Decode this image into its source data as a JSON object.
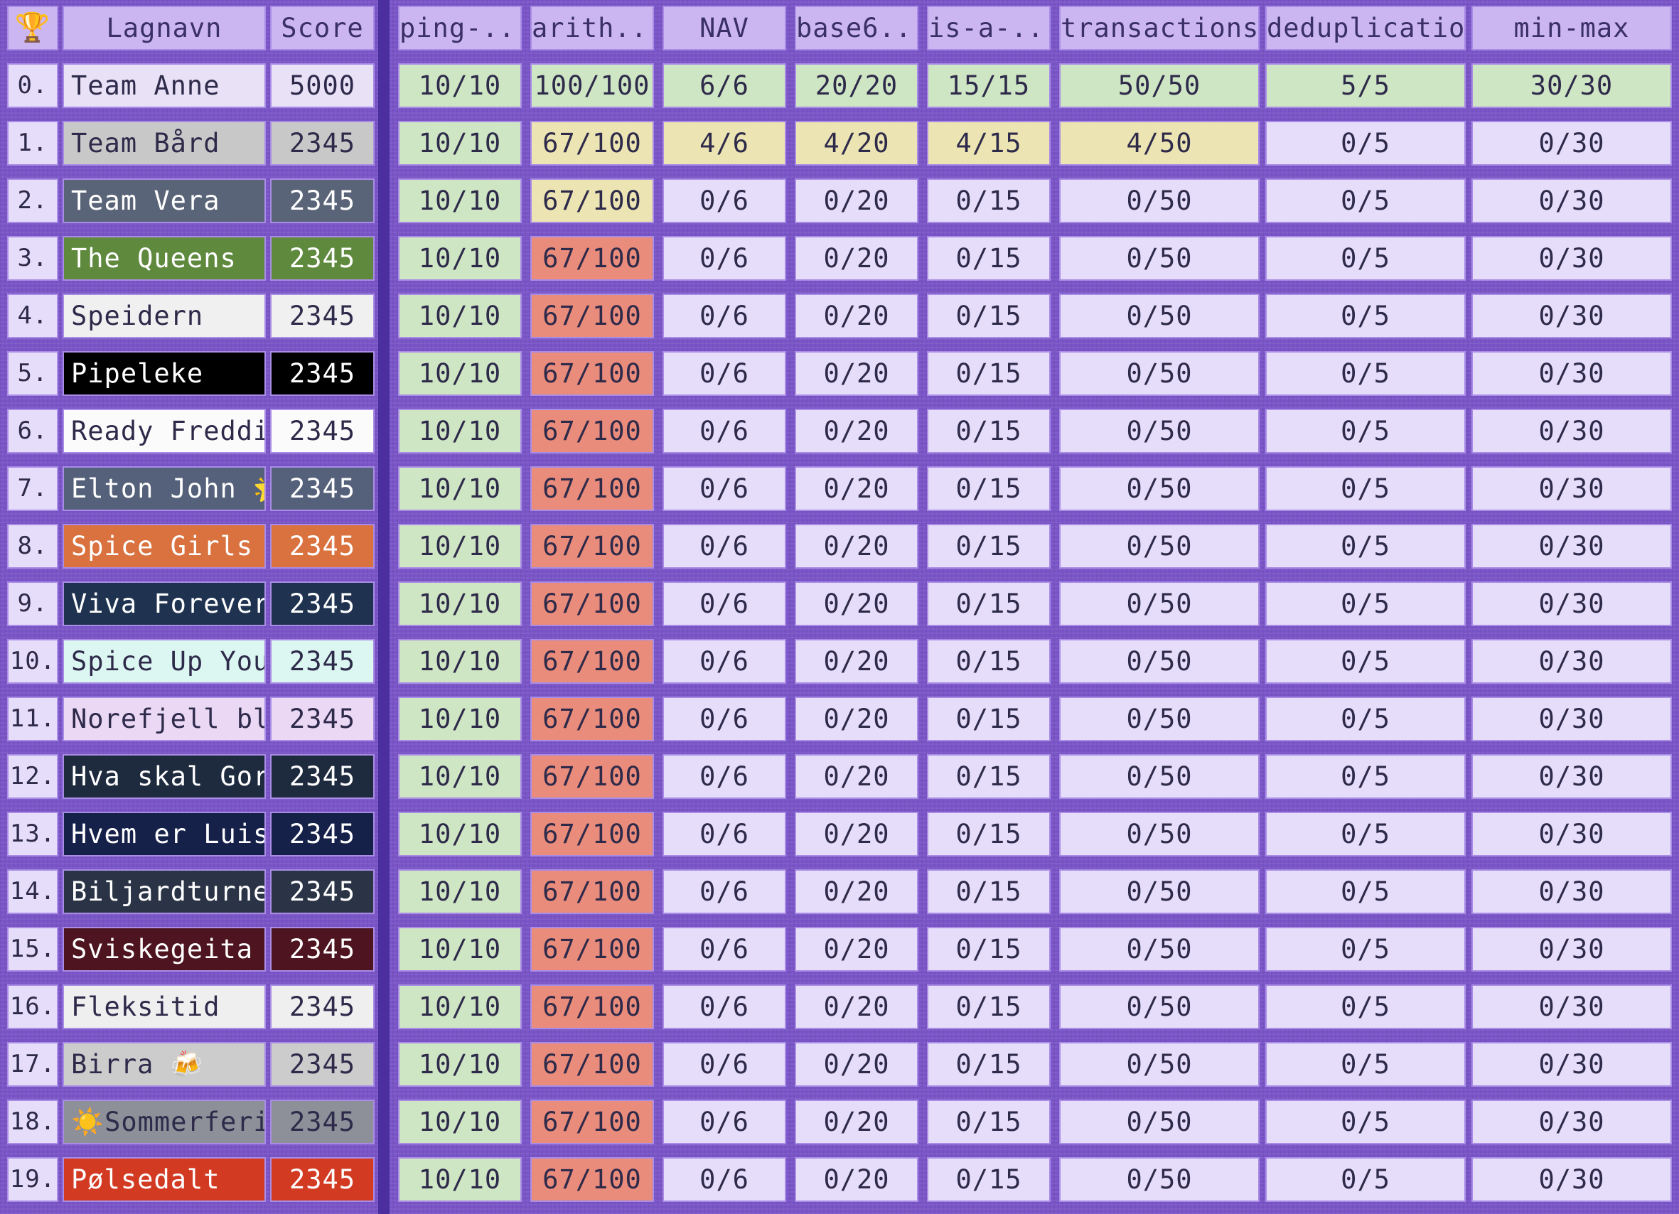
{
  "header": {
    "trophy_icon": "🏆",
    "team": "Lagnavn",
    "score": "Score",
    "tasks": [
      "ping-...",
      "arith...",
      "NAV",
      "base6...",
      "is-a-...",
      "transactions",
      "deduplication",
      "min-max"
    ]
  },
  "status_colors": {
    "complete": "#cfe6c4",
    "partial": "#ece5b3",
    "failing": "#ea8c7b",
    "none": "#e6ddfa"
  },
  "rows": [
    {
      "rank": "0.",
      "name": "Team Anne",
      "score": "5000",
      "bg": "#e9e2f7",
      "fg": "#2e2a4a",
      "cells": [
        {
          "v": "10/10",
          "s": "complete"
        },
        {
          "v": "100/100",
          "s": "complete"
        },
        {
          "v": "6/6",
          "s": "complete"
        },
        {
          "v": "20/20",
          "s": "complete"
        },
        {
          "v": "15/15",
          "s": "complete"
        },
        {
          "v": "50/50",
          "s": "complete"
        },
        {
          "v": "5/5",
          "s": "complete"
        },
        {
          "v": "30/30",
          "s": "complete"
        }
      ]
    },
    {
      "rank": "1.",
      "name": "Team Bård",
      "score": "2345",
      "bg": "#c8c8c8",
      "fg": "#2e2a4a",
      "cells": [
        {
          "v": "10/10",
          "s": "complete"
        },
        {
          "v": "67/100",
          "s": "partial"
        },
        {
          "v": "4/6",
          "s": "partial"
        },
        {
          "v": "4/20",
          "s": "partial"
        },
        {
          "v": "4/15",
          "s": "partial"
        },
        {
          "v": "4/50",
          "s": "partial"
        },
        {
          "v": "0/5",
          "s": "none"
        },
        {
          "v": "0/30",
          "s": "none"
        }
      ]
    },
    {
      "rank": "2.",
      "name": "Team Vera",
      "score": "2345",
      "bg": "#5a6478",
      "fg": "#ffffff",
      "cells": [
        {
          "v": "10/10",
          "s": "complete"
        },
        {
          "v": "67/100",
          "s": "partial"
        },
        {
          "v": "0/6",
          "s": "none"
        },
        {
          "v": "0/20",
          "s": "none"
        },
        {
          "v": "0/15",
          "s": "none"
        },
        {
          "v": "0/50",
          "s": "none"
        },
        {
          "v": "0/5",
          "s": "none"
        },
        {
          "v": "0/30",
          "s": "none"
        }
      ]
    },
    {
      "rank": "3.",
      "name": "The Queens",
      "score": "2345",
      "bg": "#5f8a3e",
      "fg": "#ffffff",
      "cells": [
        {
          "v": "10/10",
          "s": "complete"
        },
        {
          "v": "67/100",
          "s": "failing"
        },
        {
          "v": "0/6",
          "s": "none"
        },
        {
          "v": "0/20",
          "s": "none"
        },
        {
          "v": "0/15",
          "s": "none"
        },
        {
          "v": "0/50",
          "s": "none"
        },
        {
          "v": "0/5",
          "s": "none"
        },
        {
          "v": "0/30",
          "s": "none"
        }
      ]
    },
    {
      "rank": "4.",
      "name": "Speidern",
      "score": "2345",
      "bg": "#f0f0f0",
      "fg": "#2e2a4a",
      "cells": [
        {
          "v": "10/10",
          "s": "complete"
        },
        {
          "v": "67/100",
          "s": "failing"
        },
        {
          "v": "0/6",
          "s": "none"
        },
        {
          "v": "0/20",
          "s": "none"
        },
        {
          "v": "0/15",
          "s": "none"
        },
        {
          "v": "0/50",
          "s": "none"
        },
        {
          "v": "0/5",
          "s": "none"
        },
        {
          "v": "0/30",
          "s": "none"
        }
      ]
    },
    {
      "rank": "5.",
      "name": "Pipeleke",
      "score": "2345",
      "bg": "#000000",
      "fg": "#ffffff",
      "cells": [
        {
          "v": "10/10",
          "s": "complete"
        },
        {
          "v": "67/100",
          "s": "failing"
        },
        {
          "v": "0/6",
          "s": "none"
        },
        {
          "v": "0/20",
          "s": "none"
        },
        {
          "v": "0/15",
          "s": "none"
        },
        {
          "v": "0/50",
          "s": "none"
        },
        {
          "v": "0/5",
          "s": "none"
        },
        {
          "v": "0/30",
          "s": "none"
        }
      ]
    },
    {
      "rank": "6.",
      "name": "Ready Freddie",
      "score": "2345",
      "bg": "#fbfbfb",
      "fg": "#2e2a4a",
      "cells": [
        {
          "v": "10/10",
          "s": "complete"
        },
        {
          "v": "67/100",
          "s": "failing"
        },
        {
          "v": "0/6",
          "s": "none"
        },
        {
          "v": "0/20",
          "s": "none"
        },
        {
          "v": "0/15",
          "s": "none"
        },
        {
          "v": "0/50",
          "s": "none"
        },
        {
          "v": "0/5",
          "s": "none"
        },
        {
          "v": "0/30",
          "s": "none"
        }
      ]
    },
    {
      "rank": "7.",
      "name": "Elton John 🌟",
      "score": "2345",
      "bg": "#55617a",
      "fg": "#ffffff",
      "cells": [
        {
          "v": "10/10",
          "s": "complete"
        },
        {
          "v": "67/100",
          "s": "failing"
        },
        {
          "v": "0/6",
          "s": "none"
        },
        {
          "v": "0/20",
          "s": "none"
        },
        {
          "v": "0/15",
          "s": "none"
        },
        {
          "v": "0/50",
          "s": "none"
        },
        {
          "v": "0/5",
          "s": "none"
        },
        {
          "v": "0/30",
          "s": "none"
        }
      ]
    },
    {
      "rank": "8.",
      "name": "Spice Girls ✌️",
      "score": "2345",
      "bg": "#d9723f",
      "fg": "#ffffff",
      "cells": [
        {
          "v": "10/10",
          "s": "complete"
        },
        {
          "v": "67/100",
          "s": "failing"
        },
        {
          "v": "0/6",
          "s": "none"
        },
        {
          "v": "0/20",
          "s": "none"
        },
        {
          "v": "0/15",
          "s": "none"
        },
        {
          "v": "0/50",
          "s": "none"
        },
        {
          "v": "0/5",
          "s": "none"
        },
        {
          "v": "0/30",
          "s": "none"
        }
      ]
    },
    {
      "rank": "9.",
      "name": "Viva Forever",
      "score": "2345",
      "bg": "#1f3350",
      "fg": "#ffffff",
      "cells": [
        {
          "v": "10/10",
          "s": "complete"
        },
        {
          "v": "67/100",
          "s": "failing"
        },
        {
          "v": "0/6",
          "s": "none"
        },
        {
          "v": "0/20",
          "s": "none"
        },
        {
          "v": "0/15",
          "s": "none"
        },
        {
          "v": "0/50",
          "s": "none"
        },
        {
          "v": "0/5",
          "s": "none"
        },
        {
          "v": "0/30",
          "s": "none"
        }
      ]
    },
    {
      "rank": "10.",
      "name": "Spice Up Your",
      "score": "2345",
      "bg": "#dcf7f2",
      "fg": "#2e2a4a",
      "cells": [
        {
          "v": "10/10",
          "s": "complete"
        },
        {
          "v": "67/100",
          "s": "failing"
        },
        {
          "v": "0/6",
          "s": "none"
        },
        {
          "v": "0/20",
          "s": "none"
        },
        {
          "v": "0/15",
          "s": "none"
        },
        {
          "v": "0/50",
          "s": "none"
        },
        {
          "v": "0/5",
          "s": "none"
        },
        {
          "v": "0/30",
          "s": "none"
        }
      ]
    },
    {
      "rank": "11.",
      "name": "Norefjell blir",
      "score": "2345",
      "bg": "#ead8f5",
      "fg": "#2e2a4a",
      "cells": [
        {
          "v": "10/10",
          "s": "complete"
        },
        {
          "v": "67/100",
          "s": "failing"
        },
        {
          "v": "0/6",
          "s": "none"
        },
        {
          "v": "0/20",
          "s": "none"
        },
        {
          "v": "0/15",
          "s": "none"
        },
        {
          "v": "0/50",
          "s": "none"
        },
        {
          "v": "0/5",
          "s": "none"
        },
        {
          "v": "0/30",
          "s": "none"
        }
      ]
    },
    {
      "rank": "12.",
      "name": "Hva skal Gorm",
      "score": "2345",
      "bg": "#1e2a3e",
      "fg": "#ffffff",
      "cells": [
        {
          "v": "10/10",
          "s": "complete"
        },
        {
          "v": "67/100",
          "s": "failing"
        },
        {
          "v": "0/6",
          "s": "none"
        },
        {
          "v": "0/20",
          "s": "none"
        },
        {
          "v": "0/15",
          "s": "none"
        },
        {
          "v": "0/50",
          "s": "none"
        },
        {
          "v": "0/5",
          "s": "none"
        },
        {
          "v": "0/30",
          "s": "none"
        }
      ]
    },
    {
      "rank": "13.",
      "name": "Hvem er Luis i",
      "score": "2345",
      "bg": "#16214a",
      "fg": "#ffffff",
      "cells": [
        {
          "v": "10/10",
          "s": "complete"
        },
        {
          "v": "67/100",
          "s": "failing"
        },
        {
          "v": "0/6",
          "s": "none"
        },
        {
          "v": "0/20",
          "s": "none"
        },
        {
          "v": "0/15",
          "s": "none"
        },
        {
          "v": "0/50",
          "s": "none"
        },
        {
          "v": "0/5",
          "s": "none"
        },
        {
          "v": "0/30",
          "s": "none"
        }
      ]
    },
    {
      "rank": "14.",
      "name": "Biljardturnerin",
      "score": "2345",
      "bg": "#2a3446",
      "fg": "#ffffff",
      "cells": [
        {
          "v": "10/10",
          "s": "complete"
        },
        {
          "v": "67/100",
          "s": "failing"
        },
        {
          "v": "0/6",
          "s": "none"
        },
        {
          "v": "0/20",
          "s": "none"
        },
        {
          "v": "0/15",
          "s": "none"
        },
        {
          "v": "0/50",
          "s": "none"
        },
        {
          "v": "0/5",
          "s": "none"
        },
        {
          "v": "0/30",
          "s": "none"
        }
      ]
    },
    {
      "rank": "15.",
      "name": "Sviskegeita",
      "score": "2345",
      "bg": "#4e1520",
      "fg": "#ffffff",
      "cells": [
        {
          "v": "10/10",
          "s": "complete"
        },
        {
          "v": "67/100",
          "s": "failing"
        },
        {
          "v": "0/6",
          "s": "none"
        },
        {
          "v": "0/20",
          "s": "none"
        },
        {
          "v": "0/15",
          "s": "none"
        },
        {
          "v": "0/50",
          "s": "none"
        },
        {
          "v": "0/5",
          "s": "none"
        },
        {
          "v": "0/30",
          "s": "none"
        }
      ]
    },
    {
      "rank": "16.",
      "name": "Fleksitid",
      "score": "2345",
      "bg": "#efefef",
      "fg": "#2e2a4a",
      "cells": [
        {
          "v": "10/10",
          "s": "complete"
        },
        {
          "v": "67/100",
          "s": "failing"
        },
        {
          "v": "0/6",
          "s": "none"
        },
        {
          "v": "0/20",
          "s": "none"
        },
        {
          "v": "0/15",
          "s": "none"
        },
        {
          "v": "0/50",
          "s": "none"
        },
        {
          "v": "0/5",
          "s": "none"
        },
        {
          "v": "0/30",
          "s": "none"
        }
      ]
    },
    {
      "rank": "17.",
      "name": "Birra 🍻",
      "score": "2345",
      "bg": "#cccccc",
      "fg": "#2e2a4a",
      "cells": [
        {
          "v": "10/10",
          "s": "complete"
        },
        {
          "v": "67/100",
          "s": "failing"
        },
        {
          "v": "0/6",
          "s": "none"
        },
        {
          "v": "0/20",
          "s": "none"
        },
        {
          "v": "0/15",
          "s": "none"
        },
        {
          "v": "0/50",
          "s": "none"
        },
        {
          "v": "0/5",
          "s": "none"
        },
        {
          "v": "0/30",
          "s": "none"
        }
      ]
    },
    {
      "rank": "18.",
      "name": "☀️Sommerferi",
      "score": "2345",
      "bg": "#8d8f99",
      "fg": "#2e2a4a",
      "cells": [
        {
          "v": "10/10",
          "s": "complete"
        },
        {
          "v": "67/100",
          "s": "failing"
        },
        {
          "v": "0/6",
          "s": "none"
        },
        {
          "v": "0/20",
          "s": "none"
        },
        {
          "v": "0/15",
          "s": "none"
        },
        {
          "v": "0/50",
          "s": "none"
        },
        {
          "v": "0/5",
          "s": "none"
        },
        {
          "v": "0/30",
          "s": "none"
        }
      ]
    },
    {
      "rank": "19.",
      "name": "Pølsedalt",
      "score": "2345",
      "bg": "#d23a22",
      "fg": "#ffffff",
      "cells": [
        {
          "v": "10/10",
          "s": "complete"
        },
        {
          "v": "67/100",
          "s": "failing"
        },
        {
          "v": "0/6",
          "s": "none"
        },
        {
          "v": "0/20",
          "s": "none"
        },
        {
          "v": "0/15",
          "s": "none"
        },
        {
          "v": "0/50",
          "s": "none"
        },
        {
          "v": "0/5",
          "s": "none"
        },
        {
          "v": "0/30",
          "s": "none"
        }
      ]
    }
  ]
}
